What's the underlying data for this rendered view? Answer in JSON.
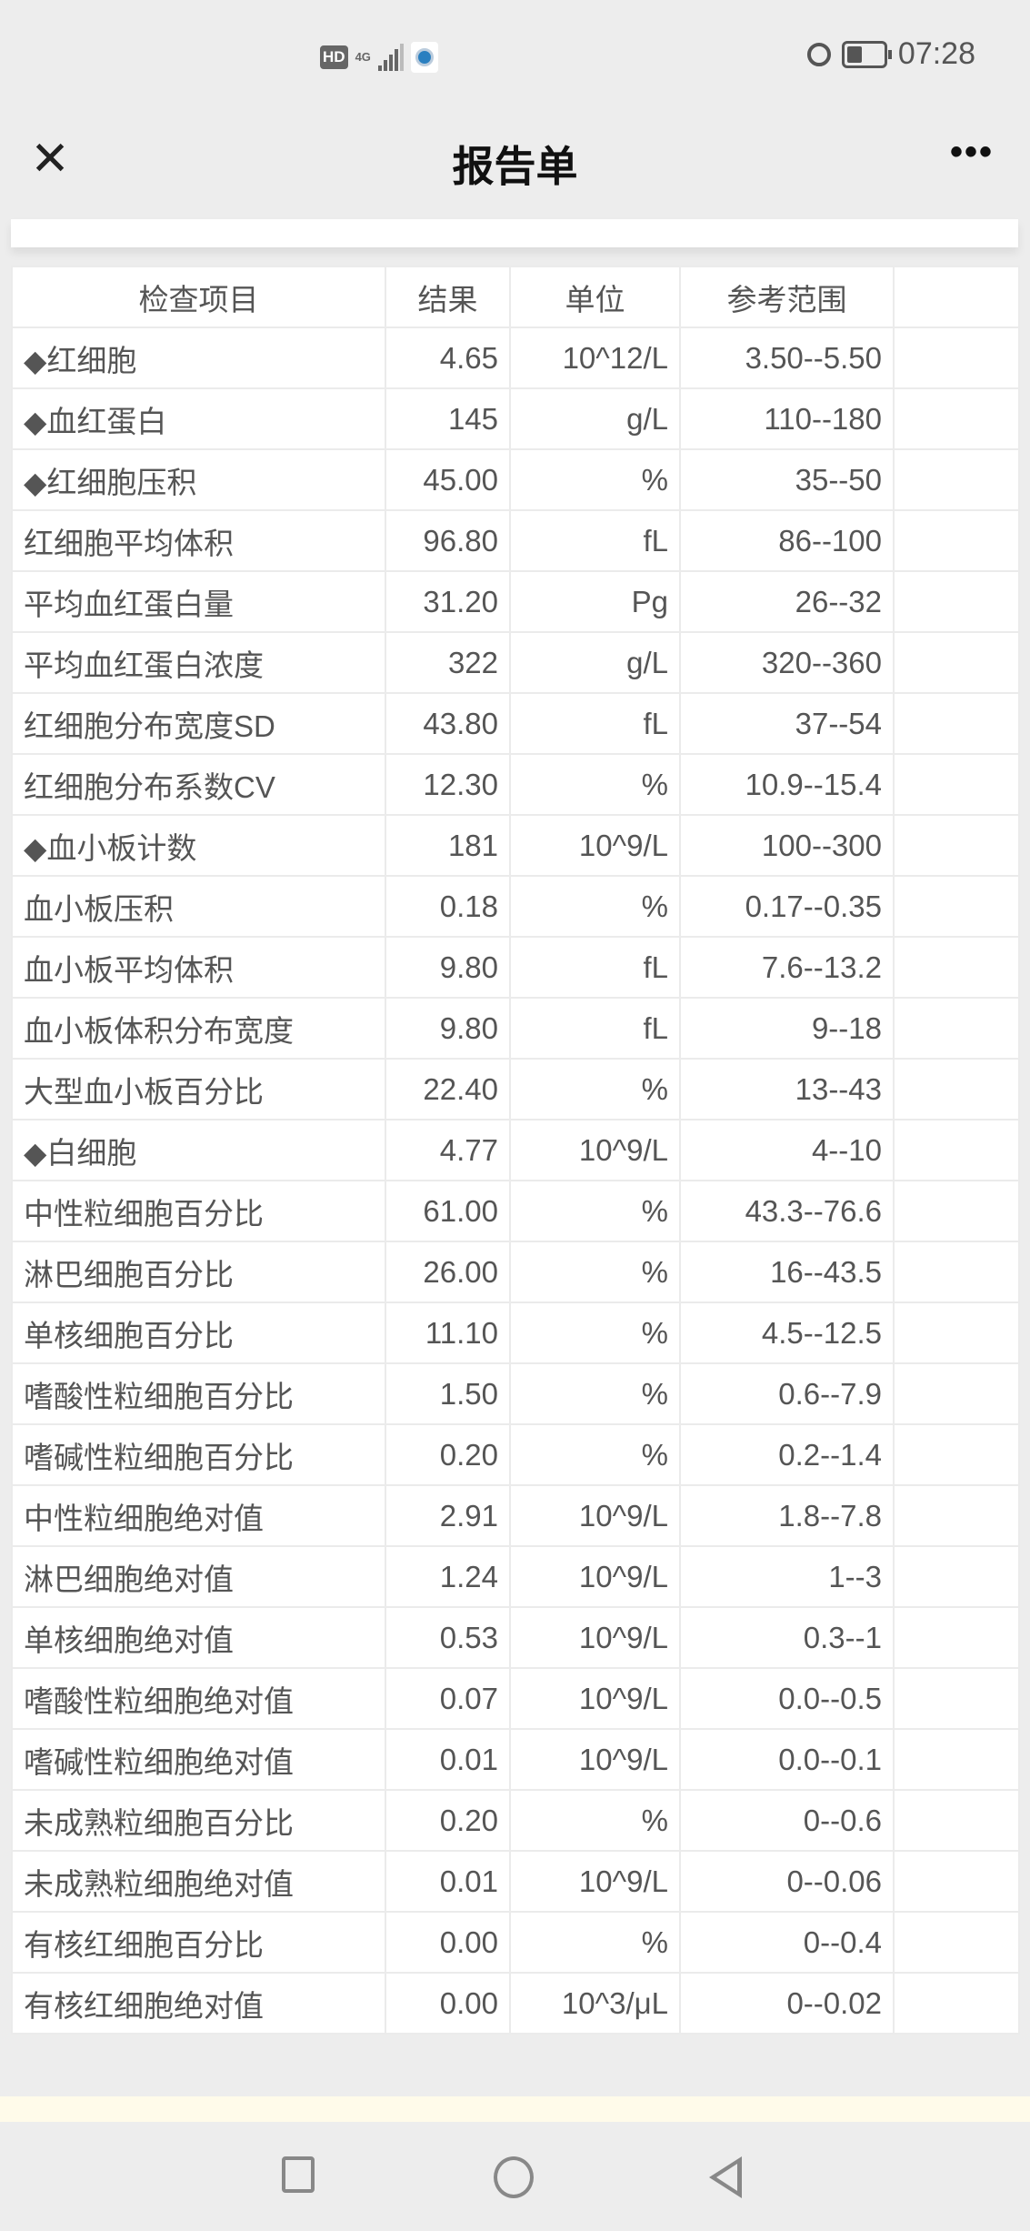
{
  "status_bar": {
    "hd": "HD",
    "network": "4G",
    "time": "07:28"
  },
  "header": {
    "title": "报告单",
    "close_icon": "close-icon",
    "more_icon": "more-icon"
  },
  "table": {
    "columns": [
      "检查项目",
      "结果",
      "单位",
      "参考范围",
      ""
    ],
    "rows": [
      [
        "◆红细胞",
        "4.65",
        "10^12/L",
        "3.50--5.50"
      ],
      [
        "◆血红蛋白",
        "145",
        "g/L",
        "110--180"
      ],
      [
        "◆红细胞压积",
        "45.00",
        "%",
        "35--50"
      ],
      [
        "红细胞平均体积",
        "96.80",
        "fL",
        "86--100"
      ],
      [
        "平均血红蛋白量",
        "31.20",
        "Pg",
        "26--32"
      ],
      [
        "平均血红蛋白浓度",
        "322",
        "g/L",
        "320--360"
      ],
      [
        "红细胞分布宽度SD",
        "43.80",
        "fL",
        "37--54"
      ],
      [
        "红细胞分布系数CV",
        "12.30",
        "%",
        "10.9--15.4"
      ],
      [
        "◆血小板计数",
        "181",
        "10^9/L",
        "100--300"
      ],
      [
        "血小板压积",
        "0.18",
        "%",
        "0.17--0.35"
      ],
      [
        "血小板平均体积",
        "9.80",
        "fL",
        "7.6--13.2"
      ],
      [
        "血小板体积分布宽度",
        "9.80",
        "fL",
        "9--18"
      ],
      [
        "大型血小板百分比",
        "22.40",
        "%",
        "13--43"
      ],
      [
        "◆白细胞",
        "4.77",
        "10^9/L",
        "4--10"
      ],
      [
        "中性粒细胞百分比",
        "61.00",
        "%",
        "43.3--76.6"
      ],
      [
        "淋巴细胞百分比",
        "26.00",
        "%",
        "16--43.5"
      ],
      [
        "单核细胞百分比",
        "11.10",
        "%",
        "4.5--12.5"
      ],
      [
        "嗜酸性粒细胞百分比",
        "1.50",
        "%",
        "0.6--7.9"
      ],
      [
        "嗜碱性粒细胞百分比",
        "0.20",
        "%",
        "0.2--1.4"
      ],
      [
        "中性粒细胞绝对值",
        "2.91",
        "10^9/L",
        "1.8--7.8"
      ],
      [
        "淋巴细胞绝对值",
        "1.24",
        "10^9/L",
        "1--3"
      ],
      [
        "单核细胞绝对值",
        "0.53",
        "10^9/L",
        "0.3--1"
      ],
      [
        "嗜酸性粒细胞绝对值",
        "0.07",
        "10^9/L",
        "0.0--0.5"
      ],
      [
        "嗜碱性粒细胞绝对值",
        "0.01",
        "10^9/L",
        "0.0--0.1"
      ],
      [
        "未成熟粒细胞百分比",
        "0.20",
        "%",
        "0--0.6"
      ],
      [
        "未成熟粒细胞绝对值",
        "0.01",
        "10^9/L",
        "0--0.06"
      ],
      [
        "有核红细胞百分比",
        "0.00",
        "%",
        "0--0.4"
      ],
      [
        "有核红细胞绝对值",
        "0.00",
        "10^3/μL",
        "0--0.02"
      ]
    ]
  },
  "system_nav": {
    "recents": "square-icon",
    "home": "circle-icon",
    "back": "triangle-back-icon"
  }
}
